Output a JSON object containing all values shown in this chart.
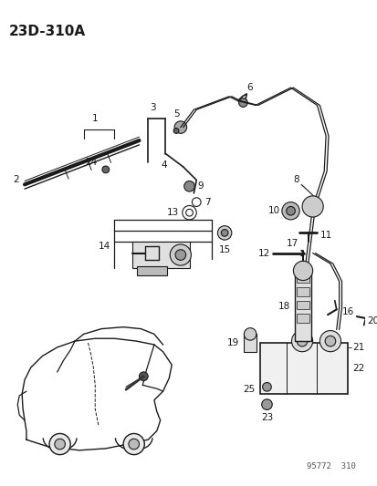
{
  "title": "23D-310A",
  "watermark": "95772  310",
  "bg_color": "#ffffff",
  "line_color": "#1a1a1a",
  "label_color": "#1a1a1a",
  "title_fontsize": 11,
  "label_fontsize": 7.5
}
